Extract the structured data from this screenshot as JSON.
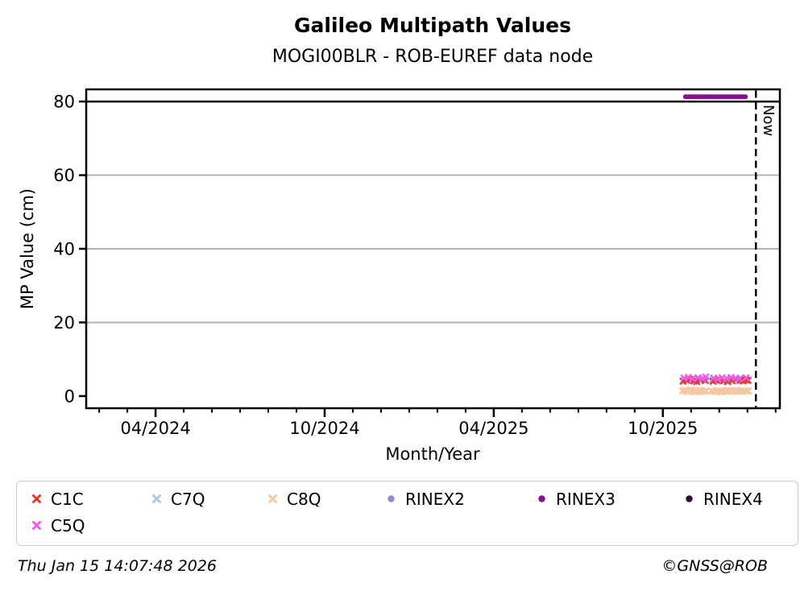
{
  "header": {
    "title": "Galileo Multipath Values",
    "subtitle": "MOGI00BLR - ROB-EUREF data node"
  },
  "chart_data": {
    "type": "scatter",
    "title": "Galileo Multipath Values",
    "subtitle": "MOGI00BLR - ROB-EUREF data node",
    "xlabel": "Month/Year",
    "ylabel": "MP Value (cm)",
    "x_unit": "months relative to 04/2024 tick",
    "xlim": [
      -2.46,
      22.15
    ],
    "ylim": [
      -3.3,
      83.3
    ],
    "y_ticks": [
      0,
      20,
      40,
      60,
      80
    ],
    "x_major_ticks": [
      {
        "x": 0,
        "label": "04/2024"
      },
      {
        "x": 6,
        "label": "10/2024"
      },
      {
        "x": 12,
        "label": "04/2025"
      },
      {
        "x": 18,
        "label": "10/2025"
      }
    ],
    "x_minor_step": 1,
    "grid_color": "#b3b3b3",
    "axis_color": "#000000",
    "hline": {
      "y": 80,
      "color": "#000000"
    },
    "now_line": {
      "x": 21.3,
      "label": "Now",
      "style": "dashed"
    },
    "legend_position": "bottom",
    "series": [
      {
        "name": "C8Q",
        "marker": "x",
        "color": "#f5c8a2",
        "x": [
          18.7,
          18.76,
          18.82,
          18.88,
          18.94,
          19.0,
          19.06,
          19.12,
          19.18,
          19.24,
          19.3,
          19.36,
          19.42,
          19.48,
          19.54,
          19.72,
          19.78,
          19.84,
          19.9,
          19.96,
          20.02,
          20.08,
          20.14,
          20.2,
          20.26,
          20.32,
          20.38,
          20.44,
          20.5,
          20.56,
          20.62,
          20.68,
          20.74,
          20.8,
          20.86,
          20.92,
          20.98,
          21.04
        ],
        "y": [
          1.4,
          1.6,
          1.3,
          1.2,
          1.5,
          1.7,
          1.4,
          1.2,
          1.1,
          1.3,
          1.6,
          1.5,
          1.3,
          1.2,
          1.4,
          1.5,
          1.3,
          1.2,
          1.4,
          1.5,
          1.3,
          1.1,
          1.2,
          1.4,
          1.6,
          1.5,
          1.4,
          1.2,
          1.3,
          1.5,
          1.6,
          1.4,
          1.3,
          1.2,
          1.4,
          1.5,
          1.3,
          1.4
        ]
      },
      {
        "name": "C7Q",
        "marker": "x",
        "color": "#a7c9e8",
        "x": [
          18.7,
          18.76,
          18.82,
          18.88,
          18.94,
          19.0,
          19.06,
          19.12,
          19.18,
          19.24,
          19.3,
          19.36,
          19.42,
          19.48,
          19.54,
          19.72,
          19.78,
          19.84,
          19.9,
          19.96,
          20.02,
          20.08,
          20.14,
          20.2,
          20.26,
          20.32,
          20.38,
          20.44,
          20.5,
          20.56,
          20.62,
          20.68,
          20.74,
          20.8,
          20.86,
          20.92,
          20.98,
          21.04
        ],
        "y": [
          4.2,
          4.4,
          4.1,
          4.3,
          4.6,
          4.4,
          4.2,
          4.0,
          4.3,
          4.5,
          4.2,
          4.1,
          4.4,
          4.6,
          4.3,
          4.2,
          4.5,
          4.4,
          4.2,
          4.3,
          4.1,
          4.0,
          4.3,
          4.5,
          4.6,
          4.4,
          4.2,
          4.1,
          4.3,
          4.4,
          4.2,
          4.0,
          4.1,
          4.3,
          4.5,
          4.3,
          4.2,
          4.4
        ]
      },
      {
        "name": "C1C",
        "marker": "x",
        "color": "#e2372b",
        "x": [
          18.72,
          18.85,
          18.95,
          19.1,
          19.2,
          19.35,
          19.5,
          19.78,
          19.9,
          20.0,
          20.15,
          20.3,
          20.45,
          20.6,
          20.75,
          20.85,
          20.95,
          21.02
        ],
        "y": [
          4.0,
          4.3,
          4.6,
          4.1,
          3.9,
          4.4,
          4.2,
          4.0,
          4.3,
          4.5,
          4.1,
          3.9,
          4.2,
          4.6,
          4.3,
          4.1,
          4.4,
          4.2
        ]
      },
      {
        "name": "C5Q",
        "marker": "x",
        "color": "#ef5bef",
        "x": [
          18.75,
          18.9,
          19.05,
          19.25,
          19.4,
          19.52,
          19.8,
          19.95,
          20.1,
          20.25,
          20.42,
          20.58,
          20.72,
          20.95
        ],
        "y": [
          4.9,
          5.1,
          4.7,
          5.0,
          4.8,
          5.2,
          4.9,
          4.6,
          5.0,
          4.8,
          5.1,
          4.9,
          4.7,
          5.0
        ]
      },
      {
        "name": "RINEX2",
        "marker": "dot",
        "color": "#908dca",
        "x": [],
        "y": []
      },
      {
        "name": "RINEX3",
        "marker": "dot",
        "color": "#8a0d8d",
        "size": 3,
        "x": [
          18.8,
          18.87,
          18.95,
          19.02,
          19.09,
          19.17,
          19.24,
          19.31,
          19.39,
          19.46,
          19.53,
          19.61,
          19.68,
          19.75,
          19.83,
          19.9,
          19.97,
          20.05,
          20.12,
          20.19,
          20.27,
          20.34,
          20.41,
          20.49,
          20.56,
          20.63,
          20.71,
          20.78,
          20.85,
          20.93
        ],
        "y": [
          81.3,
          81.3,
          81.3,
          81.3,
          81.3,
          81.3,
          81.3,
          81.3,
          81.3,
          81.3,
          81.3,
          81.3,
          81.3,
          81.3,
          81.3,
          81.3,
          81.3,
          81.3,
          81.3,
          81.3,
          81.3,
          81.3,
          81.3,
          81.3,
          81.3,
          81.3,
          81.3,
          81.3,
          81.3,
          81.3
        ]
      },
      {
        "name": "RINEX4",
        "marker": "dot",
        "color": "#2c0b33",
        "x": [],
        "y": []
      }
    ]
  },
  "legend": {
    "items": [
      {
        "label": "C1C",
        "marker": "x",
        "color": "#e2372b"
      },
      {
        "label": "C7Q",
        "marker": "x",
        "color": "#a7c9e8"
      },
      {
        "label": "C8Q",
        "marker": "x",
        "color": "#f5c8a2"
      },
      {
        "label": "RINEX2",
        "marker": "dot",
        "color": "#908dca"
      },
      {
        "label": "RINEX3",
        "marker": "dot",
        "color": "#8a0d8d"
      },
      {
        "label": "RINEX4",
        "marker": "dot",
        "color": "#2c0b33"
      },
      {
        "label": "C5Q",
        "marker": "x",
        "color": "#ef5bef"
      }
    ]
  },
  "footer": {
    "timestamp": "Thu Jan 15 14:07:48 2026",
    "credit": "©GNSS@ROB"
  }
}
